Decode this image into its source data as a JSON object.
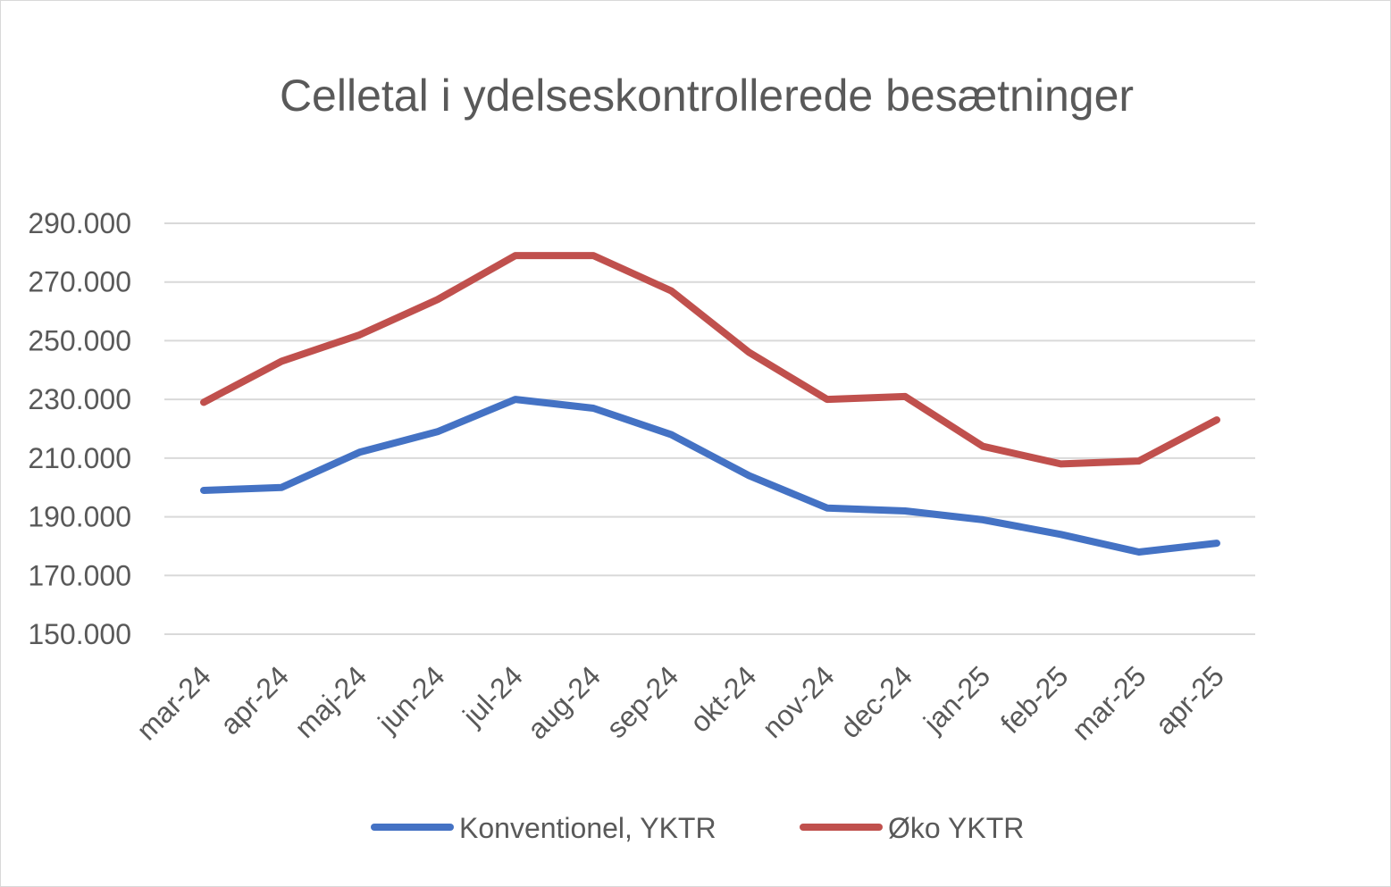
{
  "chart_data": {
    "type": "line",
    "title": "Celletal i ydelseskontrollerede besætninger",
    "xlabel": "",
    "ylabel": "",
    "categories": [
      "mar-24",
      "apr-24",
      "maj-24",
      "jun-24",
      "jul-24",
      "aug-24",
      "sep-24",
      "okt-24",
      "nov-24",
      "dec-24",
      "jan-25",
      "feb-25",
      "mar-25",
      "apr-25"
    ],
    "y_ticks": [
      "150.000",
      "170.000",
      "190.000",
      "210.000",
      "230.000",
      "250.000",
      "270.000",
      "290.000"
    ],
    "ylim": [
      150000,
      290000
    ],
    "grid": true,
    "legend_position": "bottom",
    "series": [
      {
        "name": "Konventionel, YKTR",
        "color": "#4472c4",
        "values": [
          199000,
          200000,
          212000,
          219000,
          230000,
          227000,
          218000,
          204000,
          193000,
          192000,
          189000,
          184000,
          178000,
          181000
        ]
      },
      {
        "name": "Øko YKTR",
        "color": "#c0504d",
        "values": [
          229000,
          243000,
          252000,
          264000,
          279000,
          279000,
          267000,
          246000,
          230000,
          231000,
          214000,
          208000,
          209000,
          223000
        ]
      }
    ]
  }
}
